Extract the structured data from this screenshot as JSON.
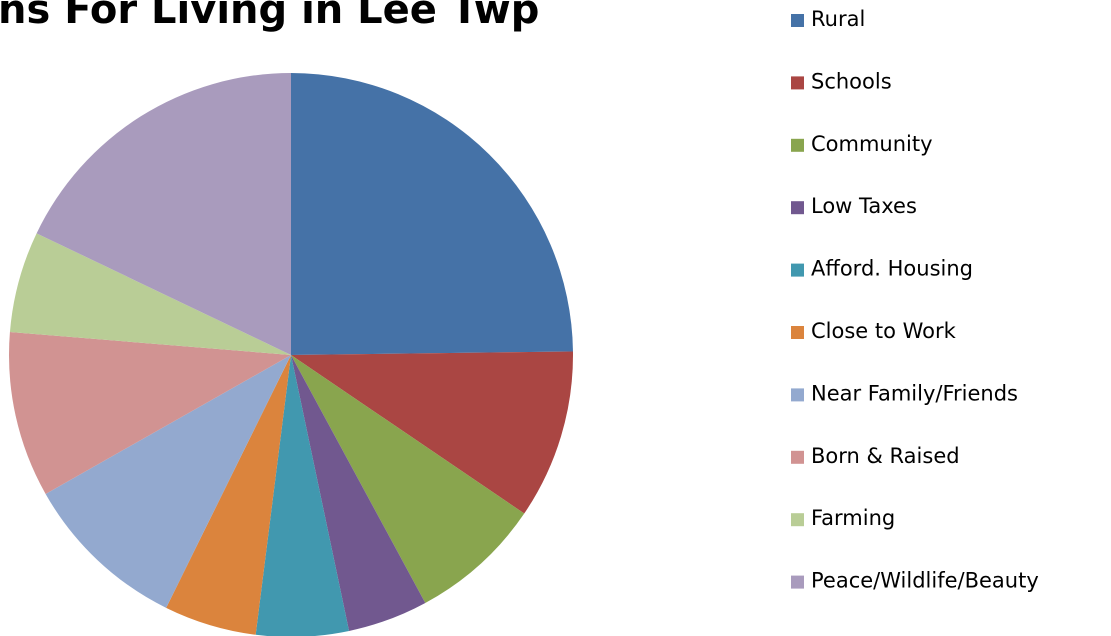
{
  "chart_data": {
    "type": "pie",
    "title": "ns For Living in Lee Twp",
    "categories": [
      "Rural",
      "Schools",
      "Community",
      "Low Taxes",
      "Afford. Housing",
      "Close to Work",
      "Near Family/Friends",
      "Born & Raised",
      "Farming",
      "Peace/Wildlife/Beauty"
    ],
    "values": [
      24.8,
      9.7,
      7.6,
      4.6,
      5.3,
      5.3,
      9.5,
      9.5,
      5.8,
      17.9
    ],
    "colors": [
      "#4572a7",
      "#aa4643",
      "#89a54e",
      "#71588f",
      "#4198af",
      "#db843d",
      "#93a9cf",
      "#d19392",
      "#b9cd96",
      "#a99bbd"
    ],
    "legend": "right"
  }
}
